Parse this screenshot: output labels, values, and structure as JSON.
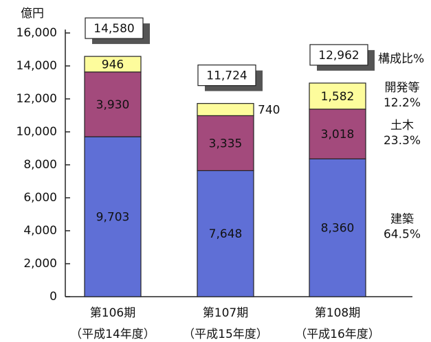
{
  "chart_data": {
    "type": "stacked-bar",
    "y_unit": "億円",
    "categories": [
      "第106期",
      "第107期",
      "第108期"
    ],
    "category_notes": [
      "（平成14年度）",
      "（平成15年度）",
      "（平成16年度）"
    ],
    "series": [
      {
        "name": "建築",
        "color": "#5f6fd6",
        "values": [
          9703,
          7648,
          8360
        ],
        "value_labels": [
          "9,703",
          "7,648",
          "8,360"
        ]
      },
      {
        "name": "土木",
        "color": "#a34a7c",
        "values": [
          3930,
          3335,
          3018
        ],
        "value_labels": [
          "3,930",
          "3,335",
          "3,018"
        ]
      },
      {
        "name": "開発等",
        "color": "#fdfc9c",
        "values": [
          946,
          740,
          1582
        ],
        "value_labels": [
          "946",
          "740",
          "1,582"
        ]
      }
    ],
    "totals": [
      14580,
      11724,
      12962
    ],
    "total_labels": [
      "14,580",
      "11,724",
      "12,962"
    ],
    "share_title": "構成比%",
    "shares": [
      64.5,
      23.3,
      12.2
    ],
    "share_labels": [
      "64.5%",
      "23.3%",
      "12.2%"
    ],
    "ylim": [
      0,
      16000
    ],
    "yticks": [
      0,
      {
        "value": 2000,
        "label": "2,000"
      },
      {
        "value": 4000,
        "label": "4,000"
      },
      {
        "value": 6000,
        "label": "6,000"
      },
      {
        "value": 8000,
        "label": "8,000"
      },
      {
        "value": 10000,
        "label": "10,000"
      },
      {
        "value": 12000,
        "label": "12,000"
      },
      {
        "value": 14000,
        "label": "14,000"
      },
      {
        "value": 16000,
        "label": "16,000"
      }
    ]
  }
}
